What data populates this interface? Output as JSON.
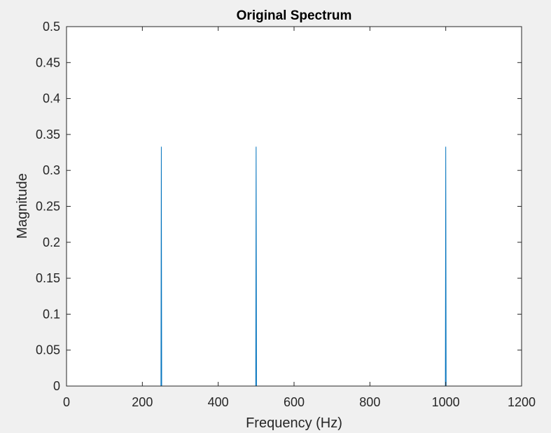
{
  "chart_data": {
    "type": "line",
    "title": "Original Spectrum",
    "xlabel": "Frequency (Hz)",
    "ylabel": "Magnitude",
    "xlim": [
      0,
      1200
    ],
    "ylim": [
      0,
      0.5
    ],
    "xticks": [
      0,
      200,
      400,
      600,
      800,
      1000,
      1200
    ],
    "xtick_labels": [
      "0",
      "200",
      "400",
      "600",
      "800",
      "1000",
      "1200"
    ],
    "yticks": [
      0,
      0.05,
      0.1,
      0.15,
      0.2,
      0.25,
      0.3,
      0.35,
      0.4,
      0.45,
      0.5
    ],
    "ytick_labels": [
      "0",
      "0.05",
      "0.1",
      "0.15",
      "0.2",
      "0.25",
      "0.3",
      "0.35",
      "0.4",
      "0.45",
      "0.5"
    ],
    "grid": false,
    "line_color": "#0072BD",
    "series": [
      {
        "x": [
          0,
          249,
          250,
          251,
          499,
          500,
          501,
          999,
          1000,
          1001,
          1200
        ],
        "y": [
          0,
          0,
          0.333,
          0,
          0,
          0.333,
          0,
          0,
          0.333,
          0,
          0
        ]
      }
    ]
  }
}
